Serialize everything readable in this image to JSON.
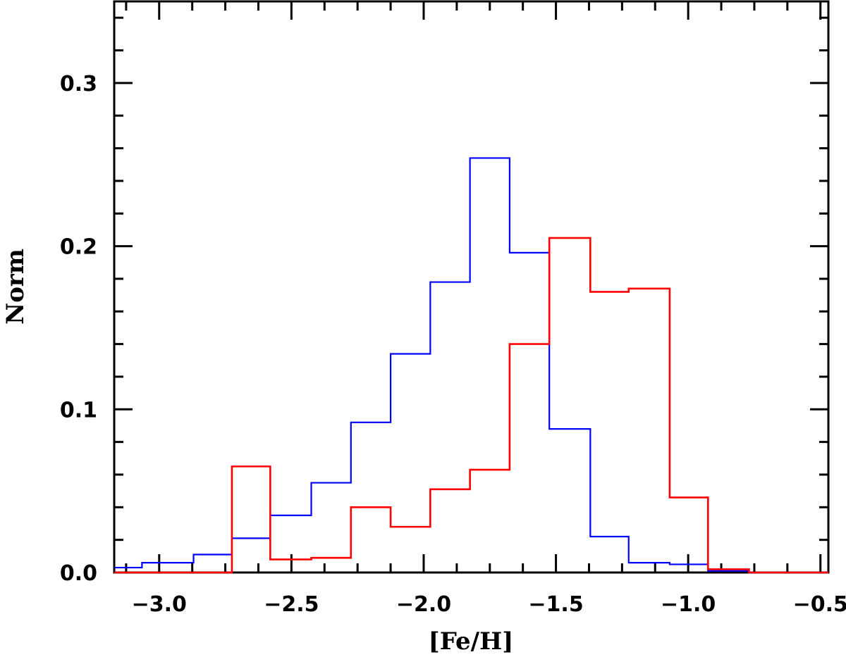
{
  "chart_data": {
    "type": "histogram",
    "title": "",
    "xlabel": "[Fe/H]",
    "ylabel": "Norm",
    "xlim": [
      -3.17,
      -0.47
    ],
    "ylim": [
      0.0,
      0.35
    ],
    "xticks": [
      -3.0,
      -2.5,
      -2.0,
      -1.5,
      -1.0,
      -0.5
    ],
    "xtick_labels": [
      "−3.0",
      "−2.5",
      "−2.0",
      "−1.5",
      "−1.0",
      "−0.5"
    ],
    "yticks": [
      0.0,
      0.1,
      0.2,
      0.3
    ],
    "ytick_labels": [
      "0.0",
      "0.1",
      "0.2",
      "0.3"
    ],
    "x_minor_step": 0.125,
    "y_minor_step": 0.02,
    "legend": "none",
    "grid": false,
    "series": [
      {
        "color": "#0000ff",
        "bin_edges": [
          -3.17,
          -3.065,
          -2.87,
          -2.725,
          -2.58,
          -2.425,
          -2.275,
          -2.125,
          -1.975,
          -1.825,
          -1.675,
          -1.525,
          -1.37,
          -1.225,
          -1.07,
          -0.925,
          -0.77,
          -0.62,
          -0.47
        ],
        "values": [
          0.003,
          0.006,
          0.011,
          0.021,
          0.035,
          0.055,
          0.092,
          0.134,
          0.178,
          0.254,
          0.196,
          0.088,
          0.022,
          0.006,
          0.005,
          0.001,
          0.0,
          0.0
        ]
      },
      {
        "color": "#ff0000",
        "bin_edges": [
          -3.17,
          -2.725,
          -2.58,
          -2.425,
          -2.275,
          -2.125,
          -1.975,
          -1.825,
          -1.675,
          -1.525,
          -1.37,
          -1.225,
          -1.07,
          -0.925,
          -0.77,
          -0.62,
          -0.47
        ],
        "values": [
          0.0,
          0.065,
          0.008,
          0.009,
          0.04,
          0.028,
          0.051,
          0.063,
          0.14,
          0.205,
          0.172,
          0.174,
          0.046,
          0.002,
          0.0,
          0.0
        ]
      }
    ]
  }
}
